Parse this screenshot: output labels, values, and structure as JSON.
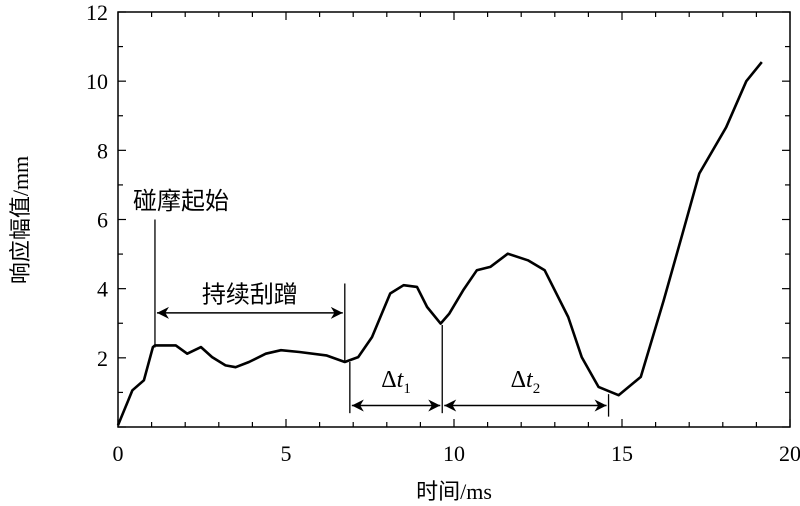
{
  "chart_data": {
    "type": "line",
    "title": "",
    "xlabel": "时间/ms",
    "ylabel": "响应幅值/mm",
    "xlim": [
      0,
      20
    ],
    "ylim": [
      0,
      12
    ],
    "xticks": [
      0,
      5,
      10,
      15,
      20
    ],
    "yticks": [
      2,
      4,
      6,
      8,
      10,
      12
    ],
    "x_tick_labels": [
      "0",
      "5",
      "10",
      "15",
      "20"
    ],
    "y_tick_labels": [
      "2",
      "4",
      "6",
      "8",
      "10",
      "12"
    ],
    "grid": false,
    "line_color": "#000000",
    "series": [
      {
        "x": [
          0,
          0.43,
          0.77,
          1.04,
          1.1,
          1.72,
          2.06,
          2.47,
          2.8,
          3.2,
          3.5,
          3.9,
          4.4,
          4.85,
          5.4,
          6.2,
          6.75,
          7.15,
          7.56,
          8.1,
          8.5,
          8.9,
          9.2,
          9.6,
          9.86,
          10.27,
          10.68,
          11.08,
          11.6,
          12.2,
          12.7,
          13.4,
          13.8,
          14.3,
          14.9,
          15.56,
          16.24,
          16.8,
          17.3,
          18.1,
          18.7,
          19.16
        ],
        "y": [
          0.05,
          1.06,
          1.35,
          2.31,
          2.36,
          2.36,
          2.12,
          2.31,
          2.02,
          1.78,
          1.73,
          1.88,
          2.12,
          2.22,
          2.17,
          2.07,
          1.88,
          2.02,
          2.6,
          3.86,
          4.1,
          4.05,
          3.47,
          2.99,
          3.28,
          3.95,
          4.53,
          4.63,
          5.01,
          4.82,
          4.53,
          3.18,
          2.02,
          1.16,
          0.92,
          1.45,
          3.66,
          5.59,
          7.33,
          8.67,
          10.0,
          10.55
        ]
      }
    ],
    "annotations": [
      {
        "text": "碰摩起始",
        "at_x": 1.1
      },
      {
        "text": "持续刮蹭",
        "from_x": 1.1,
        "to_x": 6.75,
        "y": 3.3
      },
      {
        "text": "Δt",
        "subscript": "1",
        "from_x": 6.9,
        "to_x": 9.65,
        "y": 0.62
      },
      {
        "text": "Δt",
        "subscript": "2",
        "from_x": 9.65,
        "to_x": 14.6,
        "y": 0.62
      }
    ]
  }
}
